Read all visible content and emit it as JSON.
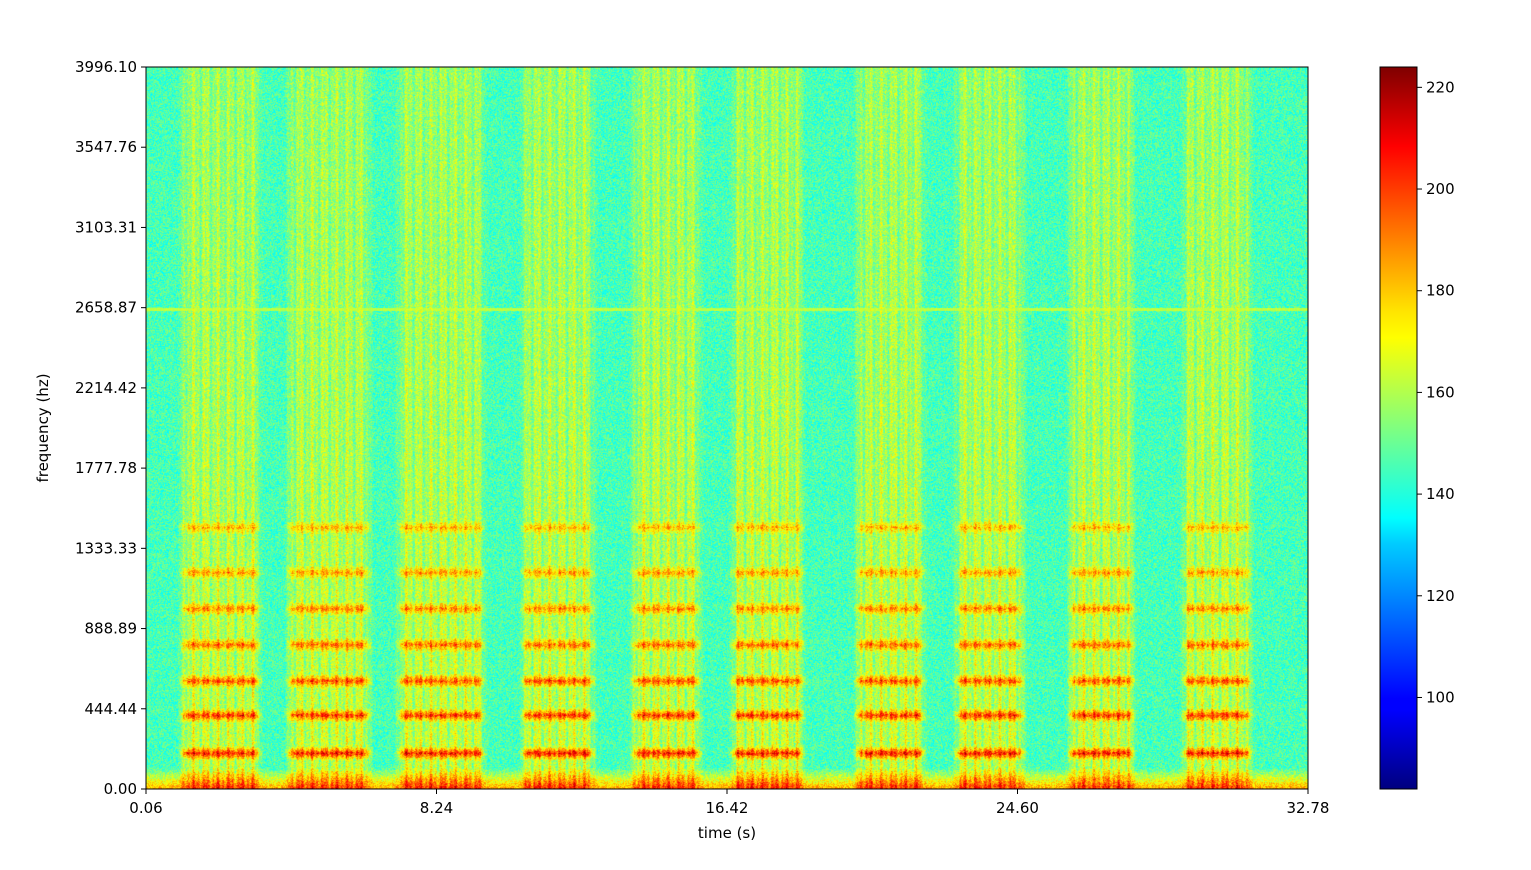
{
  "chart_data": {
    "type": "heatmap",
    "title": "",
    "xlabel": "time (s)",
    "ylabel": "frequency (hz)",
    "xlim": [
      0.06,
      32.78
    ],
    "ylim": [
      0.0,
      3996.1
    ],
    "x_ticks": [
      "0.06",
      "8.24",
      "16.42",
      "24.60",
      "32.78"
    ],
    "y_ticks": [
      "0.00",
      "444.44",
      "888.89",
      "1333.33",
      "1777.78",
      "2214.42",
      "2658.87",
      "3103.31",
      "3547.76",
      "3996.10"
    ],
    "colormap": "jet",
    "colorbar": {
      "range": [
        82,
        224
      ],
      "ticks": [
        "100",
        "120",
        "140",
        "160",
        "180",
        "200",
        "220"
      ]
    },
    "background_level": 145,
    "tone_line": {
      "frequency": 2658.87,
      "level": 162
    },
    "bursts": [
      {
        "start": 1.2,
        "end": 3.1
      },
      {
        "start": 4.2,
        "end": 6.2
      },
      {
        "start": 7.3,
        "end": 9.4
      },
      {
        "start": 10.8,
        "end": 12.5
      },
      {
        "start": 13.9,
        "end": 15.5
      },
      {
        "start": 16.7,
        "end": 18.4
      },
      {
        "start": 20.2,
        "end": 21.8
      },
      {
        "start": 23.0,
        "end": 24.6
      },
      {
        "start": 26.2,
        "end": 27.7
      },
      {
        "start": 29.4,
        "end": 31.0
      }
    ],
    "harmonics_hz": [
      200,
      410,
      600,
      800,
      1000,
      1200,
      1450
    ]
  }
}
